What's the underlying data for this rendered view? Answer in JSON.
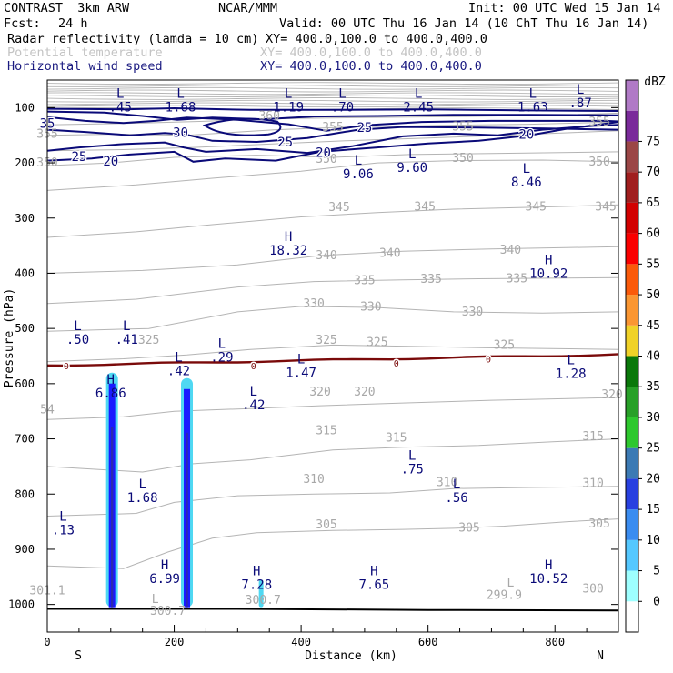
{
  "header": {
    "title_left": "CONTRAST  3km ARW",
    "center": "NCAR/MMM",
    "init": "Init: 00 UTC Wed 15 Jan 14",
    "fcst_label": "Fcst:",
    "fcst_value": "24 h",
    "valid": "Valid: 00 UTC Thu 16 Jan 14 (10 ChT Thu 16 Jan 14)",
    "fields": [
      {
        "name": "Radar reflectivity (lamda = 10 cm)",
        "xy": "XY= 400.0,100.0 to 400.0,400.0"
      },
      {
        "name": "Potential temperature",
        "xy": "XY= 400.0,100.0 to 400.0,400.0"
      },
      {
        "name": "Horizontal wind speed",
        "xy": "XY= 400.0,100.0 to 400.0,400.0"
      }
    ]
  },
  "colors": {
    "wind": "#0a0a78",
    "theta": "#b4b4b4",
    "freezing": "#7a0a0a",
    "refl_light": "#4fd8f2",
    "refl_mid": "#1a1aff",
    "refl_strong": "#2a2ab0"
  },
  "chart_data": {
    "type": "vertical-cross-section",
    "xlabel": "Distance (km)",
    "ylabel": "Pressure (hPa)",
    "xlim": [
      0,
      900
    ],
    "ylim": [
      1050,
      50
    ],
    "xticks": [
      0,
      200,
      400,
      600,
      800
    ],
    "yticks": [
      100,
      200,
      300,
      400,
      500,
      600,
      700,
      800,
      900,
      1000
    ],
    "left_end": "S",
    "right_end": "N",
    "colorbar": {
      "title": "dBZ",
      "levels": [
        0,
        5,
        10,
        15,
        20,
        25,
        30,
        35,
        40,
        45,
        50,
        55,
        60,
        65,
        70,
        75
      ],
      "colors": [
        "#ffffff",
        "#9effff",
        "#55c8ff",
        "#3a8cf0",
        "#2840e0",
        "#3c7ab4",
        "#2ec82e",
        "#28a028",
        "#0a780a",
        "#f0d228",
        "#fa9632",
        "#fa5a0a",
        "#fa0000",
        "#d20000",
        "#a01e1e",
        "#9b4646",
        "#7a2a9a",
        "#b07ac6"
      ]
    },
    "wind_labels": [
      {
        "text": "35",
        "x": 0,
        "p": 128
      },
      {
        "text": "30",
        "x": 210,
        "p": 145
      },
      {
        "text": "25",
        "x": 50,
        "p": 188
      },
      {
        "text": "25",
        "x": 375,
        "p": 162
      },
      {
        "text": "25",
        "x": 500,
        "p": 136
      },
      {
        "text": "20",
        "x": 100,
        "p": 197
      },
      {
        "text": "20",
        "x": 435,
        "p": 181
      },
      {
        "text": "20",
        "x": 755,
        "p": 148
      }
    ],
    "theta_labels": [
      {
        "text": "360",
        "x": 350,
        "p": 115
      },
      {
        "text": "355",
        "x": 450,
        "p": 136
      },
      {
        "text": "355",
        "x": 0,
        "p": 148
      },
      {
        "text": "355",
        "x": 655,
        "p": 135
      },
      {
        "text": "355",
        "x": 870,
        "p": 126
      },
      {
        "text": "350",
        "x": 0,
        "p": 200
      },
      {
        "text": "350",
        "x": 440,
        "p": 193
      },
      {
        "text": "350",
        "x": 655,
        "p": 192
      },
      {
        "text": "350",
        "x": 870,
        "p": 198
      },
      {
        "text": "345",
        "x": 460,
        "p": 281
      },
      {
        "text": "345",
        "x": 595,
        "p": 280
      },
      {
        "text": "345",
        "x": 770,
        "p": 280
      },
      {
        "text": "345",
        "x": 880,
        "p": 280
      },
      {
        "text": "340",
        "x": 440,
        "p": 368
      },
      {
        "text": "340",
        "x": 540,
        "p": 364
      },
      {
        "text": "340",
        "x": 730,
        "p": 358
      },
      {
        "text": "335",
        "x": 500,
        "p": 413
      },
      {
        "text": "335",
        "x": 605,
        "p": 411
      },
      {
        "text": "335",
        "x": 740,
        "p": 410
      },
      {
        "text": "330",
        "x": 420,
        "p": 455
      },
      {
        "text": "330",
        "x": 510,
        "p": 461
      },
      {
        "text": "330",
        "x": 670,
        "p": 470
      },
      {
        "text": "325",
        "x": 160,
        "p": 521
      },
      {
        "text": "325",
        "x": 440,
        "p": 521
      },
      {
        "text": "325",
        "x": 520,
        "p": 525
      },
      {
        "text": "325",
        "x": 720,
        "p": 530
      },
      {
        "text": "320",
        "x": 430,
        "p": 615
      },
      {
        "text": "320",
        "x": 500,
        "p": 615
      },
      {
        "text": "320",
        "x": 890,
        "p": 620
      },
      {
        "text": "315",
        "x": 440,
        "p": 685
      },
      {
        "text": "315",
        "x": 550,
        "p": 698
      },
      {
        "text": "315",
        "x": 860,
        "p": 696
      },
      {
        "text": "310",
        "x": 420,
        "p": 773
      },
      {
        "text": "310",
        "x": 630,
        "p": 779
      },
      {
        "text": "310",
        "x": 860,
        "p": 781
      },
      {
        "text": "305",
        "x": 440,
        "p": 856
      },
      {
        "text": "305",
        "x": 665,
        "p": 861
      },
      {
        "text": "305",
        "x": 870,
        "p": 854
      },
      {
        "text": "300",
        "x": 860,
        "p": 972
      },
      {
        "text": "301.1",
        "x": 0,
        "p": 975
      },
      {
        "text": "300.7",
        "x": 190,
        "p": 1012
      },
      {
        "text": "300.7",
        "x": 340,
        "p": 992
      },
      {
        "text": "299.9",
        "x": 720,
        "p": 983
      },
      {
        "text": "54",
        "x": 0,
        "p": 647
      },
      {
        "text": "L",
        "x": 730,
        "p": 961
      },
      {
        "text": "L",
        "x": 170,
        "p": 991
      }
    ],
    "freezing_labels": [
      {
        "text": "0",
        "x": 30,
        "p": 567
      },
      {
        "text": "0",
        "x": 325,
        "p": 567
      },
      {
        "text": "0",
        "x": 550,
        "p": 562
      },
      {
        "text": "0",
        "x": 695,
        "p": 555
      }
    ],
    "extrema": [
      {
        "type": "L",
        "value": ".45",
        "x": 115,
        "p": 82
      },
      {
        "type": "L",
        "value": "1.68",
        "x": 210,
        "p": 82
      },
      {
        "type": "L",
        "value": "1.19",
        "x": 380,
        "p": 82
      },
      {
        "type": "L",
        "value": ".70",
        "x": 465,
        "p": 82
      },
      {
        "type": "L",
        "value": "2.45",
        "x": 585,
        "p": 82
      },
      {
        "type": "L",
        "value": "1.63",
        "x": 765,
        "p": 82
      },
      {
        "type": "L",
        "value": ".87",
        "x": 840,
        "p": 75
      },
      {
        "type": "L",
        "value": "9.06",
        "x": 490,
        "p": 203
      },
      {
        "type": "L",
        "value": "9.60",
        "x": 575,
        "p": 192
      },
      {
        "type": "L",
        "value": "8.46",
        "x": 755,
        "p": 218
      },
      {
        "type": "H",
        "value": "18.32",
        "x": 380,
        "p": 342
      },
      {
        "type": "H",
        "value": "10.92",
        "x": 790,
        "p": 384
      },
      {
        "type": "L",
        "value": ".50",
        "x": 48,
        "p": 503
      },
      {
        "type": "L",
        "value": ".41",
        "x": 125,
        "p": 503
      },
      {
        "type": "L",
        "value": ".29",
        "x": 275,
        "p": 535
      },
      {
        "type": "L",
        "value": ".42",
        "x": 207,
        "p": 560
      },
      {
        "type": "L",
        "value": "1.47",
        "x": 400,
        "p": 563
      },
      {
        "type": "L",
        "value": "1.28",
        "x": 825,
        "p": 565
      },
      {
        "type": "H",
        "value": "6.86",
        "x": 100,
        "p": 600
      },
      {
        "type": "L",
        "value": ".42",
        "x": 325,
        "p": 622
      },
      {
        "type": "L",
        "value": ".75",
        "x": 575,
        "p": 738
      },
      {
        "type": "L",
        "value": "1.68",
        "x": 150,
        "p": 790
      },
      {
        "type": "L",
        "value": ".56",
        "x": 645,
        "p": 790
      },
      {
        "type": "L",
        "value": ".13",
        "x": 25,
        "p": 848
      },
      {
        "type": "H",
        "value": "6.99",
        "x": 185,
        "p": 936
      },
      {
        "type": "H",
        "value": "7.28",
        "x": 330,
        "p": 947
      },
      {
        "type": "H",
        "value": "7.65",
        "x": 515,
        "p": 947
      },
      {
        "type": "H",
        "value": "10.52",
        "x": 790,
        "p": 936
      }
    ],
    "reflectivity_columns": [
      {
        "x": 102,
        "top_p": 580,
        "bottom_p": 1005,
        "max_dbz": 20
      },
      {
        "x": 220,
        "top_p": 590,
        "bottom_p": 1005,
        "max_dbz": 20
      },
      {
        "x": 337,
        "top_p": 955,
        "bottom_p": 1005,
        "max_dbz": 5
      }
    ]
  }
}
